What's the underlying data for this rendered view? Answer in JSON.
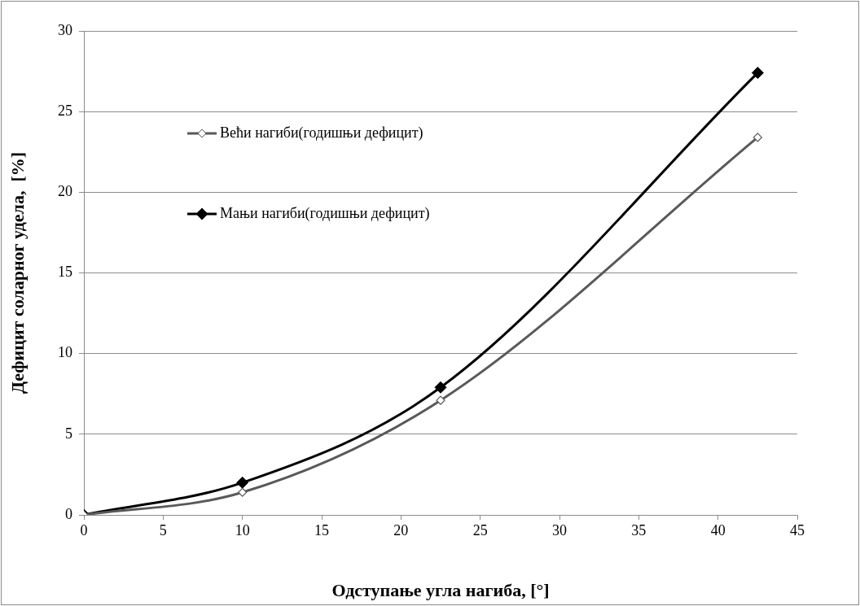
{
  "chart_data": {
    "type": "line",
    "xlabel": "Одступање угла нагиба, [°]",
    "ylabel": "Дефицит соларног удела,  [%]",
    "x": [
      0,
      10,
      22.5,
      42.5
    ],
    "series": [
      {
        "name": "Већи нагиби(годишњи  дефицит)",
        "color": "#595959",
        "values": [
          0,
          1.4,
          7.1,
          23.4
        ]
      },
      {
        "name": "Мањи нагиби(годишњи  дефицит)",
        "color": "#000000",
        "values": [
          0,
          2.0,
          7.9,
          27.4
        ]
      }
    ],
    "xlim": [
      0,
      45
    ],
    "xticks": [
      0,
      5,
      10,
      15,
      20,
      25,
      30,
      35,
      40,
      45
    ],
    "ylim": [
      0,
      30
    ],
    "yticks": [
      0,
      5,
      10,
      15,
      20,
      25,
      30
    ],
    "grid": "y",
    "legend": "top left",
    "marker": "diamond",
    "line_style": "solid"
  }
}
